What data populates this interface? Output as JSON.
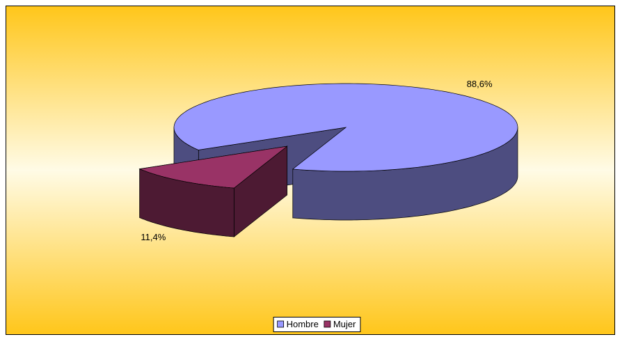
{
  "chart_data": {
    "type": "pie3d",
    "categories": [
      "Hombre",
      "Mujer"
    ],
    "values": [
      88.6,
      11.4
    ],
    "value_labels": [
      "88,6%",
      "11,4%"
    ],
    "series": [
      {
        "colors": [
          "#9999ff",
          "#993366"
        ]
      }
    ],
    "legend": "bottom"
  }
}
